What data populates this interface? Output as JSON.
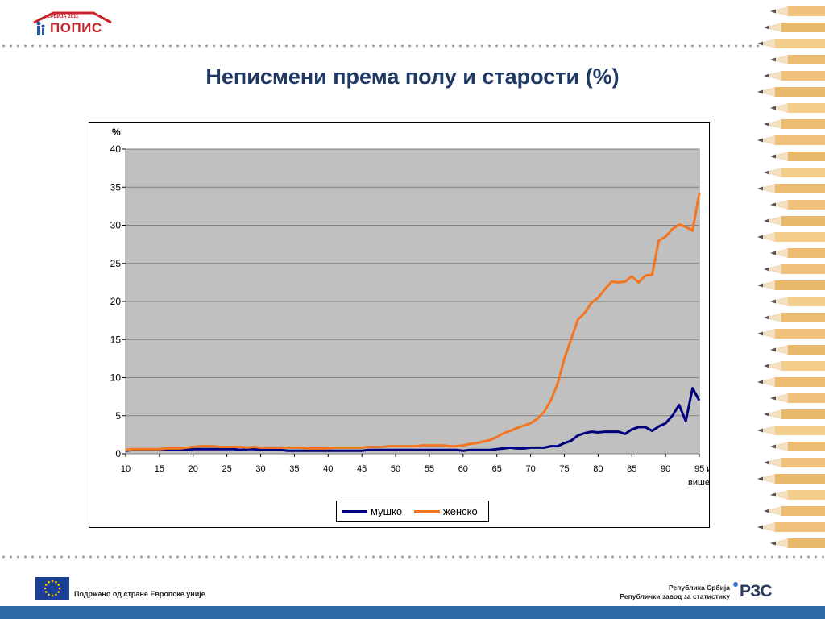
{
  "header": {
    "logo_year": "СРБИЈА 2011",
    "logo_name": "ПОПИС",
    "title": "Неписмени према полу и старости (%)"
  },
  "footer": {
    "eu_text": "Подржано од стране Европске уније",
    "institution_line1": "Република Србија",
    "institution_line2": "Републички завод за статистику",
    "institution_logo": "РЗС"
  },
  "colors": {
    "title": "#1f3864",
    "male": "#00007f",
    "female": "#f4751f",
    "plot_bg": "#c0c0c0"
  },
  "chart_data": {
    "type": "line",
    "title": "",
    "ylabel": "%",
    "xlabel": "",
    "ylim": [
      0,
      40
    ],
    "yticks": [
      0,
      5,
      10,
      15,
      20,
      25,
      30,
      35,
      40
    ],
    "xticks": [
      "10",
      "15",
      "20",
      "25",
      "30",
      "35",
      "40",
      "45",
      "50",
      "55",
      "60",
      "65",
      "70",
      "75",
      "80",
      "85",
      "90",
      "95 и више"
    ],
    "grid": true,
    "legend_position": "bottom",
    "x": [
      10,
      11,
      12,
      13,
      14,
      15,
      16,
      17,
      18,
      19,
      20,
      21,
      22,
      23,
      24,
      25,
      26,
      27,
      28,
      29,
      30,
      31,
      32,
      33,
      34,
      35,
      36,
      37,
      38,
      39,
      40,
      41,
      42,
      43,
      44,
      45,
      46,
      47,
      48,
      49,
      50,
      51,
      52,
      53,
      54,
      55,
      56,
      57,
      58,
      59,
      60,
      61,
      62,
      63,
      64,
      65,
      66,
      67,
      68,
      69,
      70,
      71,
      72,
      73,
      74,
      75,
      76,
      77,
      78,
      79,
      80,
      81,
      82,
      83,
      84,
      85,
      86,
      87,
      88,
      89,
      90,
      91,
      92,
      93,
      94,
      95
    ],
    "series": [
      {
        "name": "мушко",
        "color": "#00007f",
        "values": [
          0.4,
          0.5,
          0.5,
          0.5,
          0.5,
          0.5,
          0.5,
          0.5,
          0.5,
          0.5,
          0.6,
          0.6,
          0.6,
          0.6,
          0.6,
          0.6,
          0.6,
          0.5,
          0.6,
          0.6,
          0.5,
          0.5,
          0.5,
          0.5,
          0.4,
          0.4,
          0.4,
          0.4,
          0.4,
          0.4,
          0.4,
          0.4,
          0.4,
          0.4,
          0.4,
          0.4,
          0.5,
          0.5,
          0.5,
          0.5,
          0.5,
          0.5,
          0.5,
          0.5,
          0.5,
          0.5,
          0.5,
          0.5,
          0.5,
          0.5,
          0.4,
          0.5,
          0.5,
          0.5,
          0.5,
          0.6,
          0.7,
          0.8,
          0.7,
          0.7,
          0.8,
          0.8,
          0.8,
          1.0,
          1.0,
          1.4,
          1.7,
          2.4,
          2.7,
          2.9,
          2.8,
          2.9,
          2.9,
          2.9,
          2.6,
          3.2,
          3.5,
          3.5,
          3.0,
          3.6,
          4.0,
          5.0,
          6.4,
          4.3,
          8.6,
          7.0
        ]
      },
      {
        "name": "женско",
        "color": "#f4751f",
        "values": [
          0.5,
          0.6,
          0.6,
          0.6,
          0.6,
          0.6,
          0.7,
          0.7,
          0.7,
          0.8,
          0.9,
          1.0,
          1.0,
          1.0,
          0.9,
          0.9,
          0.9,
          0.9,
          0.8,
          0.9,
          0.8,
          0.8,
          0.8,
          0.8,
          0.8,
          0.8,
          0.8,
          0.7,
          0.7,
          0.7,
          0.7,
          0.8,
          0.8,
          0.8,
          0.8,
          0.8,
          0.9,
          0.9,
          0.9,
          1.0,
          1.0,
          1.0,
          1.0,
          1.0,
          1.1,
          1.1,
          1.1,
          1.1,
          1.0,
          1.0,
          1.1,
          1.3,
          1.4,
          1.6,
          1.8,
          2.2,
          2.7,
          3.0,
          3.4,
          3.7,
          4.0,
          4.6,
          5.5,
          7.0,
          9.2,
          12.5,
          15.0,
          17.6,
          18.5,
          19.8,
          20.5,
          21.6,
          22.6,
          22.5,
          22.6,
          23.3,
          22.5,
          23.4,
          23.5,
          28.0,
          28.5,
          29.5,
          30.1,
          29.8,
          29.3,
          34.2
        ]
      }
    ]
  }
}
